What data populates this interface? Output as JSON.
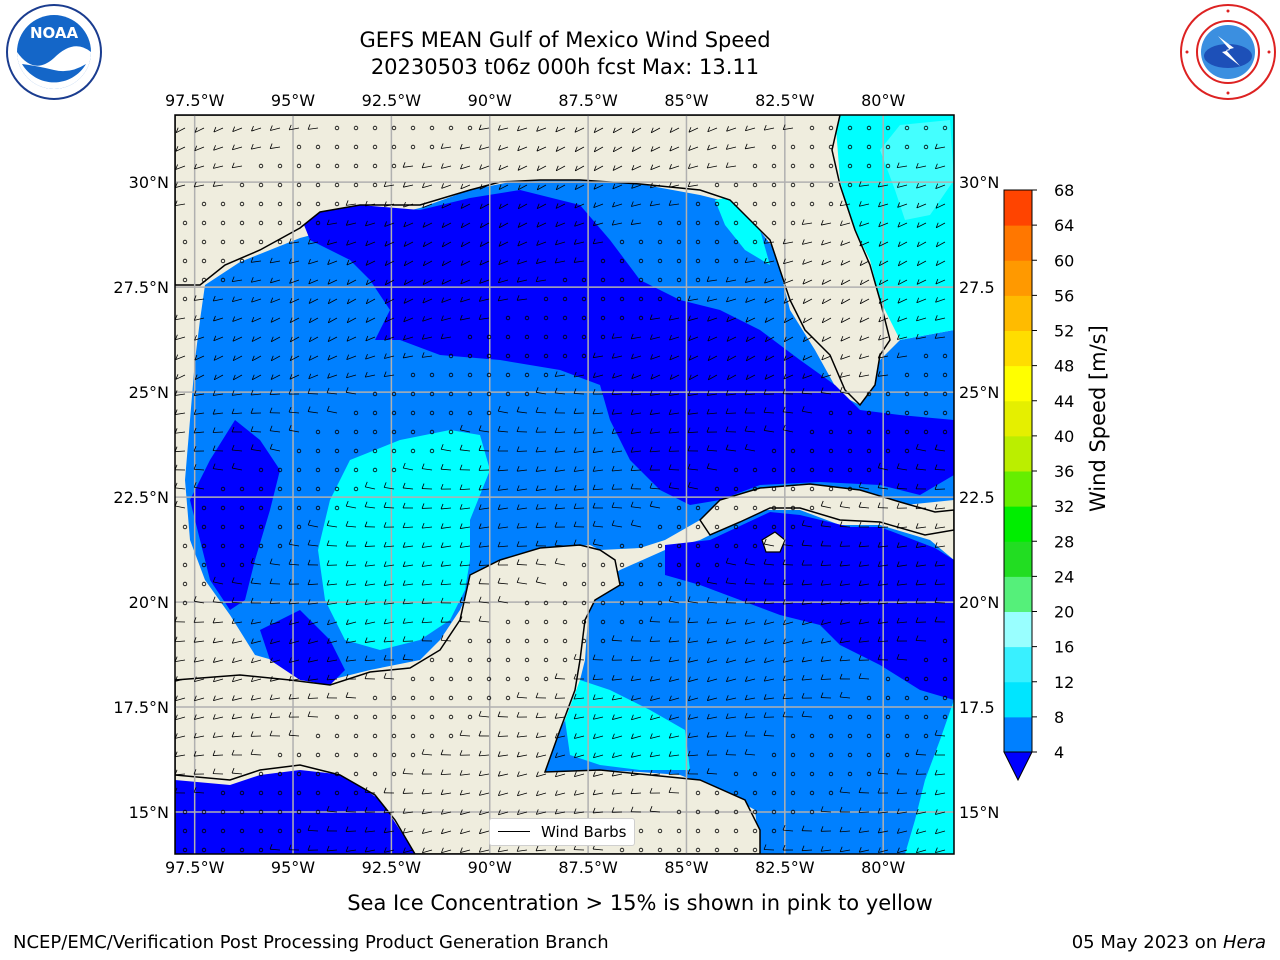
{
  "title_line1": "GEFS MEAN Gulf of Mexico Wind Speed",
  "title_line2": "20230503 t06z 000h fcst   Max: 13.11",
  "footer": {
    "sea_ice_note": "Sea Ice Concentration > 15% is shown in pink to yellow",
    "credit": "NCEP/EMC/Verification Post Processing Product Generation Branch",
    "date_text": "05 May 2023 on ",
    "machine": "Hera"
  },
  "logos": {
    "left": "noaa-logo",
    "right": "nws-logo",
    "left_text": "NOAA"
  },
  "map": {
    "lon_labels": [
      "97.5°W",
      "95°W",
      "92.5°W",
      "90°W",
      "87.5°W",
      "85°W",
      "82.5°W",
      "80°W"
    ],
    "lat_labels_left": [
      "30°N",
      "27.5°N",
      "25°N",
      "22.5°N",
      "20°N",
      "17.5°N",
      "15°N"
    ],
    "lat_labels_right": [
      "30°N",
      "27.5",
      "25°N",
      "22.5",
      "20°N",
      "17.5",
      "15°N"
    ],
    "lon_range": [
      -98,
      -78.2
    ],
    "lat_range": [
      14,
      31.6
    ],
    "land_color": "#efedde",
    "grid_color": "#b0b0b0"
  },
  "legend": {
    "label": "Wind Barbs"
  },
  "colorbar": {
    "title": "Wind Speed [m/s]",
    "ticks": [
      "4",
      "8",
      "12",
      "16",
      "20",
      "24",
      "28",
      "32",
      "36",
      "40",
      "44",
      "48",
      "52",
      "56",
      "60",
      "64",
      "68"
    ],
    "colors": [
      "#0080ff",
      "#00e5ff",
      "#39f0ff",
      "#99ffff",
      "#55f07a",
      "#22dd22",
      "#00ee00",
      "#66ee00",
      "#bbee00",
      "#e5ef00",
      "#ffff00",
      "#ffdd00",
      "#ffbb00",
      "#ff9900",
      "#ff7700",
      "#ff4400"
    ],
    "extend_color": "#0000ff"
  },
  "wind_colors": {
    "lt4": "#0000ff",
    "4to8": "#0080ff",
    "8to12": "#00ffff",
    "12to16": "#44ffff"
  }
}
